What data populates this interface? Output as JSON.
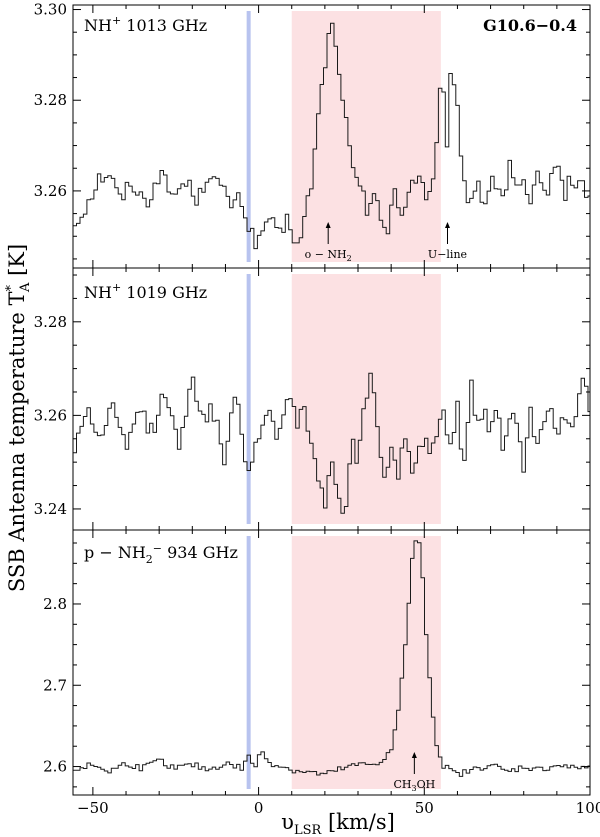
{
  "figure": {
    "xlabel": "υ",
    "xlabel_sub": "LSR",
    "xlabel_unit": " [km/s]",
    "ylabel": "SSB Antenna temperature T",
    "ylabel_sub": "A",
    "ylabel_sup": "*",
    "ylabel_unit": " [K]"
  },
  "chart_data": [
    {
      "type": "line",
      "panel": "top",
      "title": "NH+ 1013 GHz",
      "title_main": "NH",
      "title_sup": "+",
      "title_rest": " 1013 GHz",
      "source": "G10.6−0.4",
      "xlabel": "υLSR [km/s]",
      "ylabel": "SSB Antenna temperature T*A [K]",
      "xlim": [
        -56,
        100
      ],
      "ylim": [
        3.243,
        3.301
      ],
      "yticks": [
        3.26,
        3.28,
        3.3
      ],
      "ytick_labels": [
        "3.26",
        "3.28",
        "3.30"
      ],
      "shaded_region": [
        10,
        55
      ],
      "marker_line": -3,
      "annotations": [
        {
          "text": "o − NH",
          "sub": "2",
          "x": 21
        },
        {
          "text": "U−line",
          "sub": "",
          "x": 57
        }
      ],
      "anchors": [
        [
          -56,
          3.252
        ],
        [
          -52,
          3.257
        ],
        [
          -48,
          3.263
        ],
        [
          -45,
          3.264
        ],
        [
          -42,
          3.258
        ],
        [
          -38,
          3.262
        ],
        [
          -34,
          3.257
        ],
        [
          -30,
          3.264
        ],
        [
          -26,
          3.259
        ],
        [
          -22,
          3.262
        ],
        [
          -18,
          3.258
        ],
        [
          -15,
          3.265
        ],
        [
          -12,
          3.261
        ],
        [
          -8,
          3.257
        ],
        [
          -5,
          3.258
        ],
        [
          -3,
          3.252
        ],
        [
          0,
          3.248
        ],
        [
          3,
          3.255
        ],
        [
          6,
          3.249
        ],
        [
          9,
          3.254
        ],
        [
          12,
          3.247
        ],
        [
          14,
          3.254
        ],
        [
          16,
          3.262
        ],
        [
          18,
          3.276
        ],
        [
          20,
          3.288
        ],
        [
          21,
          3.293
        ],
        [
          22,
          3.298
        ],
        [
          23,
          3.292
        ],
        [
          25,
          3.284
        ],
        [
          27,
          3.271
        ],
        [
          29,
          3.262
        ],
        [
          31,
          3.26
        ],
        [
          33,
          3.255
        ],
        [
          35,
          3.262
        ],
        [
          37,
          3.254
        ],
        [
          39,
          3.25
        ],
        [
          41,
          3.26
        ],
        [
          43,
          3.254
        ],
        [
          45,
          3.26
        ],
        [
          47,
          3.263
        ],
        [
          49,
          3.263
        ],
        [
          51,
          3.258
        ],
        [
          53,
          3.262
        ],
        [
          55,
          3.283
        ],
        [
          56,
          3.28
        ],
        [
          57,
          3.27
        ],
        [
          58,
          3.285
        ],
        [
          60,
          3.278
        ],
        [
          62,
          3.262
        ],
        [
          64,
          3.257
        ],
        [
          66,
          3.263
        ],
        [
          68,
          3.257
        ],
        [
          70,
          3.261
        ],
        [
          72,
          3.262
        ],
        [
          74,
          3.258
        ],
        [
          76,
          3.267
        ],
        [
          78,
          3.259
        ],
        [
          80,
          3.262
        ],
        [
          82,
          3.255
        ],
        [
          84,
          3.263
        ],
        [
          86,
          3.259
        ],
        [
          88,
          3.262
        ],
        [
          90,
          3.268
        ],
        [
          92,
          3.258
        ],
        [
          94,
          3.264
        ],
        [
          96,
          3.26
        ],
        [
          98,
          3.262
        ],
        [
          100,
          3.258
        ]
      ]
    },
    {
      "type": "line",
      "panel": "middle",
      "title": "NH+ 1019 GHz",
      "title_main": "NH",
      "title_sup": "+",
      "title_rest": " 1019 GHz",
      "xlim": [
        -56,
        100
      ],
      "ylim": [
        3.2355,
        3.2915
      ],
      "yticks": [
        3.24,
        3.26,
        3.28
      ],
      "ytick_labels": [
        "3.24",
        "3.26",
        "3.28"
      ],
      "shaded_region": [
        10,
        55
      ],
      "marker_line": -3,
      "anchors": [
        [
          -56,
          3.251
        ],
        [
          -52,
          3.262
        ],
        [
          -48,
          3.255
        ],
        [
          -44,
          3.262
        ],
        [
          -40,
          3.252
        ],
        [
          -36,
          3.262
        ],
        [
          -32,
          3.256
        ],
        [
          -28,
          3.266
        ],
        [
          -24,
          3.252
        ],
        [
          -20,
          3.27
        ],
        [
          -17,
          3.258
        ],
        [
          -14,
          3.262
        ],
        [
          -10,
          3.25
        ],
        [
          -7,
          3.265
        ],
        [
          -4,
          3.25
        ],
        [
          -3,
          3.25
        ],
        [
          0,
          3.255
        ],
        [
          3,
          3.262
        ],
        [
          6,
          3.255
        ],
        [
          9,
          3.266
        ],
        [
          12,
          3.258
        ],
        [
          14,
          3.262
        ],
        [
          16,
          3.252
        ],
        [
          18,
          3.248
        ],
        [
          20,
          3.24
        ],
        [
          22,
          3.25
        ],
        [
          24,
          3.245
        ],
        [
          26,
          3.238
        ],
        [
          28,
          3.255
        ],
        [
          30,
          3.25
        ],
        [
          32,
          3.262
        ],
        [
          34,
          3.268
        ],
        [
          36,
          3.258
        ],
        [
          38,
          3.245
        ],
        [
          40,
          3.255
        ],
        [
          42,
          3.245
        ],
        [
          44,
          3.255
        ],
        [
          46,
          3.248
        ],
        [
          48,
          3.252
        ],
        [
          50,
          3.255
        ],
        [
          52,
          3.253
        ],
        [
          54,
          3.256
        ],
        [
          56,
          3.262
        ],
        [
          58,
          3.252
        ],
        [
          60,
          3.262
        ],
        [
          62,
          3.248
        ],
        [
          64,
          3.268
        ],
        [
          66,
          3.258
        ],
        [
          68,
          3.262
        ],
        [
          70,
          3.255
        ],
        [
          72,
          3.265
        ],
        [
          74,
          3.252
        ],
        [
          76,
          3.262
        ],
        [
          78,
          3.258
        ],
        [
          80,
          3.248
        ],
        [
          82,
          3.262
        ],
        [
          84,
          3.252
        ],
        [
          86,
          3.258
        ],
        [
          88,
          3.265
        ],
        [
          90,
          3.255
        ],
        [
          92,
          3.26
        ],
        [
          94,
          3.258
        ],
        [
          96,
          3.262
        ],
        [
          98,
          3.268
        ],
        [
          100,
          3.262
        ]
      ]
    },
    {
      "type": "line",
      "panel": "bottom",
      "title": "p − NH2− 934 GHz",
      "title_main": "p − NH",
      "title_sub": "2",
      "title_sup": "−",
      "title_rest": " 934 GHz",
      "xlim": [
        -56,
        100
      ],
      "ylim": [
        2.565,
        2.891
      ],
      "yticks": [
        2.6,
        2.7,
        2.8
      ],
      "ytick_labels": [
        "2.6",
        "2.7",
        "2.8"
      ],
      "shaded_region": [
        10,
        55
      ],
      "marker_line": -3,
      "annotations": [
        {
          "text": "CH",
          "sub": "3",
          "rest": "OH",
          "x": 47
        }
      ],
      "anchors": [
        [
          -56,
          2.596
        ],
        [
          -50,
          2.602
        ],
        [
          -45,
          2.594
        ],
        [
          -40,
          2.604
        ],
        [
          -35,
          2.598
        ],
        [
          -30,
          2.607
        ],
        [
          -25,
          2.598
        ],
        [
          -20,
          2.602
        ],
        [
          -15,
          2.596
        ],
        [
          -10,
          2.604
        ],
        [
          -5,
          2.598
        ],
        [
          -3,
          2.612
        ],
        [
          -1,
          2.6
        ],
        [
          1,
          2.62
        ],
        [
          3,
          2.605
        ],
        [
          6,
          2.602
        ],
        [
          10,
          2.596
        ],
        [
          15,
          2.593
        ],
        [
          20,
          2.59
        ],
        [
          25,
          2.597
        ],
        [
          30,
          2.602
        ],
        [
          35,
          2.603
        ],
        [
          38,
          2.61
        ],
        [
          40,
          2.62
        ],
        [
          42,
          2.66
        ],
        [
          43,
          2.7
        ],
        [
          44,
          2.74
        ],
        [
          45,
          2.78
        ],
        [
          46,
          2.84
        ],
        [
          47,
          2.875
        ],
        [
          48,
          2.885
        ],
        [
          49,
          2.86
        ],
        [
          50,
          2.8
        ],
        [
          51,
          2.74
        ],
        [
          52,
          2.69
        ],
        [
          53,
          2.65
        ],
        [
          54,
          2.62
        ],
        [
          56,
          2.6
        ],
        [
          60,
          2.59
        ],
        [
          65,
          2.596
        ],
        [
          70,
          2.603
        ],
        [
          75,
          2.593
        ],
        [
          80,
          2.6
        ],
        [
          85,
          2.596
        ],
        [
          90,
          2.602
        ],
        [
          95,
          2.598
        ],
        [
          100,
          2.6
        ]
      ]
    }
  ],
  "x_axis": {
    "ticks": [
      -50,
      0,
      50,
      100
    ],
    "tick_labels": [
      "−50",
      "0",
      "50",
      "100"
    ]
  }
}
